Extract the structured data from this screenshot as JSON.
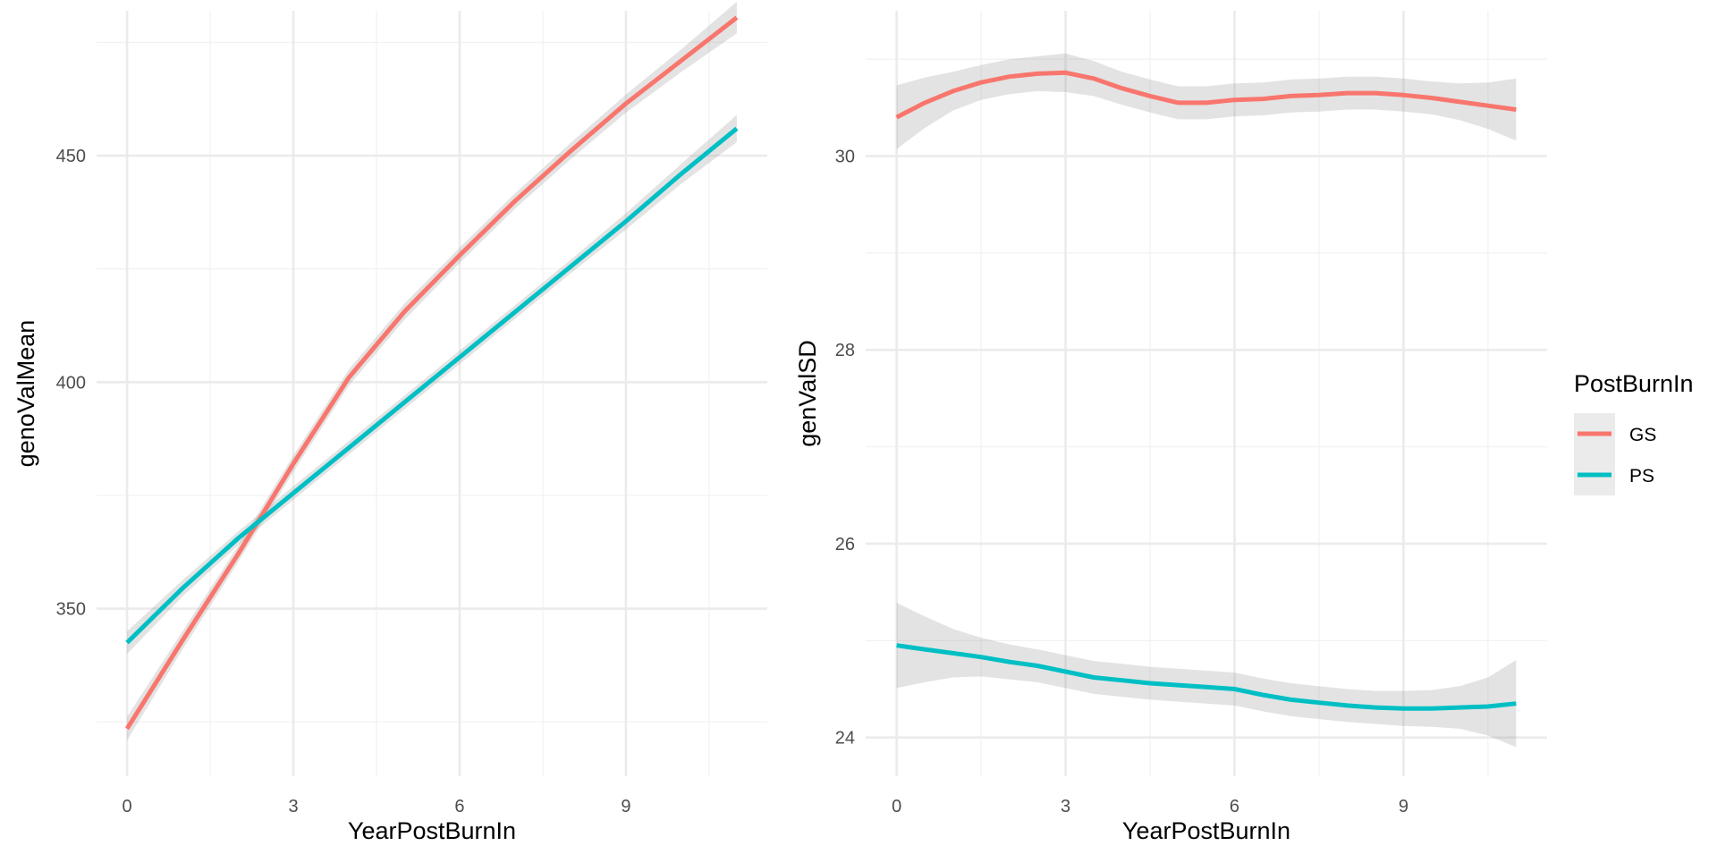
{
  "chart_data": [
    {
      "type": "line",
      "panel": "left",
      "xlabel": "YearPostBurnIn",
      "ylabel": "genoValMean",
      "xlim": [
        -0.55,
        11.55
      ],
      "ylim": [
        313,
        482
      ],
      "xticks": [
        0,
        3,
        6,
        9
      ],
      "yticks": [
        350,
        400,
        450
      ],
      "grid": true,
      "series": [
        {
          "name": "GS",
          "x": [
            0,
            1,
            2,
            3,
            4,
            5,
            6,
            7,
            8,
            9,
            10,
            11
          ],
          "y": [
            323.5,
            343,
            362,
            382,
            401,
            415.5,
            428,
            440,
            451,
            461.5,
            471,
            480.5
          ],
          "band": [
            2.6,
            2,
            1.8,
            1.8,
            1.8,
            1.8,
            1.7,
            1.7,
            1.8,
            2,
            2.5,
            3.5
          ]
        },
        {
          "name": "PS",
          "x": [
            0,
            1,
            2,
            3,
            4,
            5,
            6,
            7,
            8,
            9,
            10,
            11
          ],
          "y": [
            342.5,
            354.5,
            365.5,
            375.5,
            385.5,
            395.5,
            405.5,
            415.5,
            425.5,
            435.5,
            446,
            456
          ],
          "band": [
            2.5,
            1.8,
            1.5,
            1.5,
            1.5,
            1.5,
            1.5,
            1.5,
            1.5,
            1.8,
            2.2,
            3
          ]
        }
      ]
    },
    {
      "type": "line",
      "panel": "right",
      "xlabel": "YearPostBurnIn",
      "ylabel": "genValSD",
      "xlim": [
        -0.55,
        11.55
      ],
      "ylim": [
        23.6,
        31.5
      ],
      "xticks": [
        0,
        3,
        6,
        9
      ],
      "yticks": [
        24,
        26,
        28,
        30
      ],
      "grid": true,
      "series": [
        {
          "name": "GS",
          "x": [
            0,
            0.5,
            1,
            1.5,
            2,
            2.5,
            3,
            3.5,
            4,
            4.5,
            5,
            5.5,
            6,
            6.5,
            7,
            7.5,
            8,
            8.5,
            9,
            9.5,
            10,
            10.5,
            11
          ],
          "y": [
            30.4,
            30.55,
            30.67,
            30.76,
            30.82,
            30.85,
            30.86,
            30.8,
            30.7,
            30.62,
            30.55,
            30.55,
            30.58,
            30.59,
            30.62,
            30.63,
            30.65,
            30.65,
            30.63,
            30.6,
            30.56,
            30.52,
            30.48
          ],
          "band": [
            0.33,
            0.26,
            0.2,
            0.18,
            0.18,
            0.18,
            0.2,
            0.18,
            0.17,
            0.17,
            0.17,
            0.17,
            0.17,
            0.17,
            0.17,
            0.17,
            0.17,
            0.17,
            0.17,
            0.17,
            0.19,
            0.24,
            0.32
          ]
        },
        {
          "name": "PS",
          "x": [
            0,
            0.5,
            1,
            1.5,
            2,
            2.5,
            3,
            3.5,
            4,
            4.5,
            5,
            5.5,
            6,
            6.5,
            7,
            7.5,
            8,
            8.5,
            9,
            9.5,
            10,
            10.5,
            11
          ],
          "y": [
            24.95,
            24.91,
            24.87,
            24.83,
            24.78,
            24.74,
            24.68,
            24.62,
            24.59,
            24.56,
            24.54,
            24.52,
            24.5,
            24.44,
            24.39,
            24.36,
            24.33,
            24.31,
            24.3,
            24.3,
            24.31,
            24.32,
            24.35
          ],
          "band": [
            0.44,
            0.34,
            0.25,
            0.2,
            0.18,
            0.17,
            0.17,
            0.17,
            0.17,
            0.17,
            0.17,
            0.17,
            0.17,
            0.17,
            0.17,
            0.17,
            0.17,
            0.17,
            0.18,
            0.19,
            0.22,
            0.3,
            0.45
          ]
        }
      ]
    }
  ],
  "legend": {
    "title": "PostBurnIn",
    "placement": "right",
    "items": [
      {
        "label": "GS",
        "color": "#F8766D"
      },
      {
        "label": "PS",
        "color": "#00BFC4"
      }
    ]
  },
  "colors": {
    "GS": "#F8766D",
    "PS": "#00BFC4",
    "ribbon": "#999999",
    "grid_major": "#EBEBEB",
    "grid_minor": "#F2F2F2"
  }
}
